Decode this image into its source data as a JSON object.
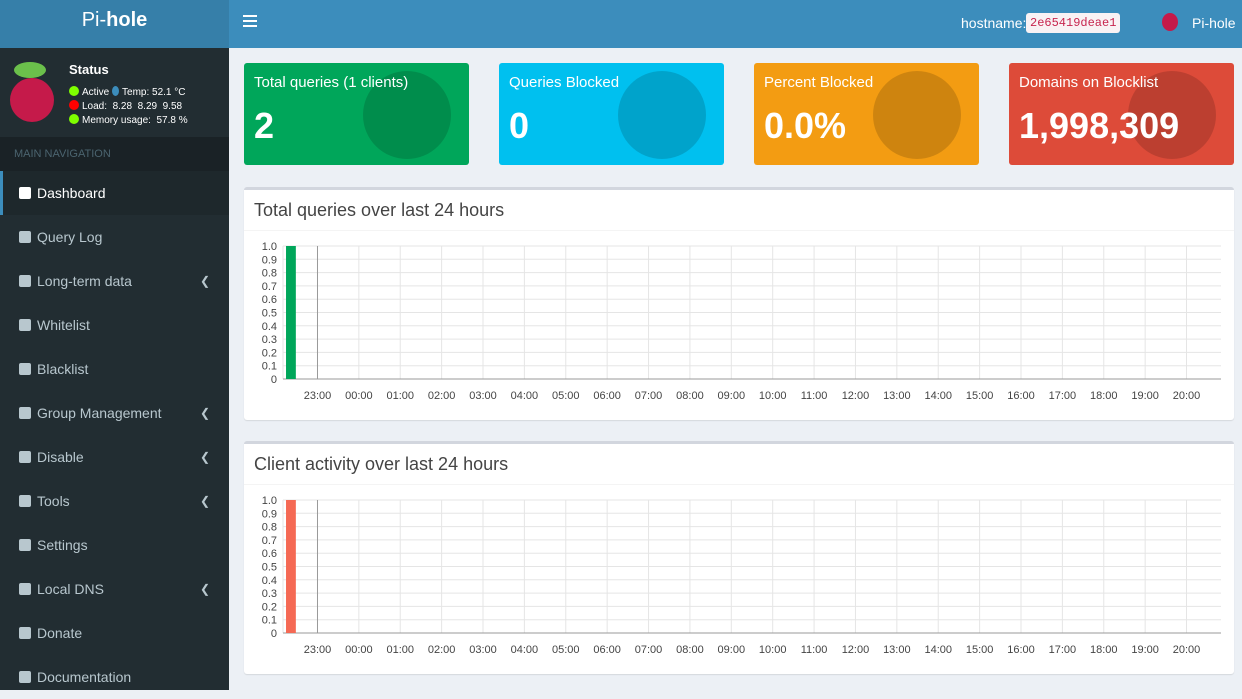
{
  "header": {
    "logo_prefix": "Pi-",
    "logo_bold": "hole",
    "hostname_label": "hostname:",
    "hostname": "2e65419deae1",
    "user": "Pi-hole"
  },
  "status": {
    "title": "Status",
    "active": "Active",
    "temp": "Temp: 52.1 °C",
    "load": "Load:  8.28  8.29  9.58",
    "memory": "Memory usage:  57.8 %"
  },
  "nav": {
    "heading": "MAIN NAVIGATION",
    "items": [
      {
        "label": "Dashboard",
        "active": true
      },
      {
        "label": "Query Log"
      },
      {
        "label": "Long-term data",
        "submenu": true
      },
      {
        "label": "Whitelist"
      },
      {
        "label": "Blacklist"
      },
      {
        "label": "Group Management",
        "submenu": true
      },
      {
        "label": "Disable",
        "submenu": true
      },
      {
        "label": "Tools",
        "submenu": true
      },
      {
        "label": "Settings"
      },
      {
        "label": "Local DNS",
        "submenu": true
      },
      {
        "label": "Donate"
      },
      {
        "label": "Documentation"
      }
    ]
  },
  "cards": [
    {
      "title": "Total queries (1 clients)",
      "value": "2",
      "color": "#00a65a"
    },
    {
      "title": "Queries Blocked",
      "value": "0",
      "color": "#00c0ef"
    },
    {
      "title": "Percent Blocked",
      "value": "0.0%",
      "color": "#f39c12"
    },
    {
      "title": "Domains on Blocklist",
      "value": "1,998,309",
      "color": "#dd4b39"
    }
  ],
  "charts": [
    {
      "type": "bar",
      "title": "Total queries over last 24 hours",
      "color": "#00a65a",
      "x": [
        "22:18",
        "22:25"
      ],
      "values": [
        1,
        1
      ],
      "xlim": [
        "22:10",
        "20:50"
      ],
      "xticks": [
        "23:00",
        "00:00",
        "01:00",
        "02:00",
        "03:00",
        "04:00",
        "05:00",
        "06:00",
        "07:00",
        "08:00",
        "09:00",
        "10:00",
        "11:00",
        "12:00",
        "13:00",
        "14:00",
        "15:00",
        "16:00",
        "17:00",
        "18:00",
        "19:00",
        "20:00"
      ],
      "ylim": [
        0,
        1
      ],
      "yticks": [
        0,
        0.1,
        0.2,
        0.3,
        0.4,
        0.5,
        0.6,
        0.7,
        0.8,
        0.9,
        {
          "value": 1,
          "label": "1.0"
        }
      ],
      "grid": true
    },
    {
      "type": "bar",
      "title": "Client activity over last 24 hours",
      "color": "#f56954",
      "x": [
        "22:18",
        "22:25"
      ],
      "values": [
        1,
        1
      ],
      "xlim": [
        "22:10",
        "20:50"
      ],
      "xticks": [
        "23:00",
        "00:00",
        "01:00",
        "02:00",
        "03:00",
        "04:00",
        "05:00",
        "06:00",
        "07:00",
        "08:00",
        "09:00",
        "10:00",
        "11:00",
        "12:00",
        "13:00",
        "14:00",
        "15:00",
        "16:00",
        "17:00",
        "18:00",
        "19:00",
        "20:00"
      ],
      "ylim": [
        0,
        1
      ],
      "yticks": [
        0,
        0.1,
        0.2,
        0.3,
        0.4,
        0.5,
        0.6,
        0.7,
        0.8,
        0.9,
        {
          "value": 1,
          "label": "1.0"
        }
      ],
      "grid": true
    }
  ]
}
